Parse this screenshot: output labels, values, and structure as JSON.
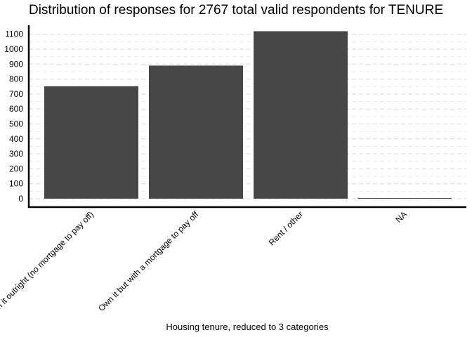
{
  "chart_data": {
    "type": "bar",
    "title": "Distribution of responses for 2767 total valid respondents for TENURE",
    "xlabel": "Housing tenure, reduced to 3 categories",
    "ylabel": "",
    "categories": [
      "Own it outright (no mortgage to pay off)",
      "Own it but with a mortgage to pay off",
      "Rent / other",
      "NA"
    ],
    "values": [
      752,
      890,
      1120,
      5
    ],
    "y_ticks": [
      0,
      100,
      200,
      300,
      400,
      500,
      600,
      700,
      800,
      900,
      1000,
      1100
    ],
    "ylim": [
      -50,
      1160
    ],
    "grid": "horizontal dashed",
    "bar_color": "#474747"
  }
}
